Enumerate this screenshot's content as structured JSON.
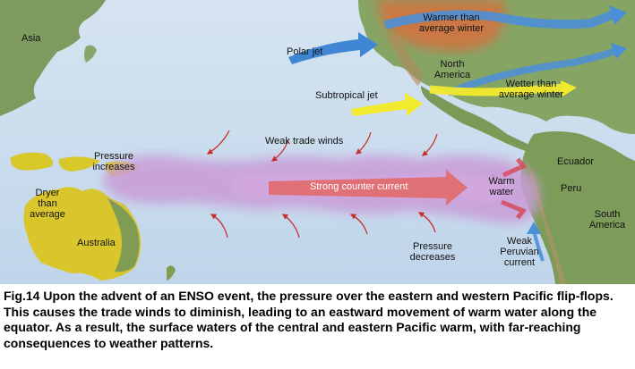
{
  "map": {
    "regions": {
      "asia": "Asia",
      "north_america": "North America",
      "australia": "Australia",
      "south_america": "South America",
      "ecuador": "Ecuador",
      "peru": "Peru"
    },
    "labels": {
      "polar_jet": "Polar jet",
      "subtropical_jet": "Subtropical jet",
      "warmer_winter": "Warmer than average winter",
      "wetter_winter": "Wetter than average winter",
      "weak_trade_winds": "Weak trade winds",
      "pressure_increases": "Pressure increases",
      "pressure_decreases": "Pressure decreases",
      "dryer_than_average": "Dryer than average",
      "strong_counter_current": "Strong counter current",
      "warm_water": "Warm water",
      "weak_peruvian_current": "Weak Peruvian current"
    },
    "colors": {
      "ocean": "#c9dbec",
      "land": "#8aa56a",
      "polar_jet": "#3f86d4",
      "subtropical_jet": "#f2ea2e",
      "warm_band": "#c99bd8",
      "counter_current": "#e06a6a",
      "trade_wind_arrow": "#c4302b",
      "warm_region": "#e06a3a",
      "dry_region": "#e9d52a"
    }
  },
  "caption": "Fig.14 Upon the advent of an ENSO event, the pressure over the eastern and western Pacific flip-flops. This causes the trade winds to diminish, leading to an eastward movement of warm water along the equator. As a result, the surface waters of the central and eastern Pacific warm, with far-reaching consequences to weather patterns."
}
